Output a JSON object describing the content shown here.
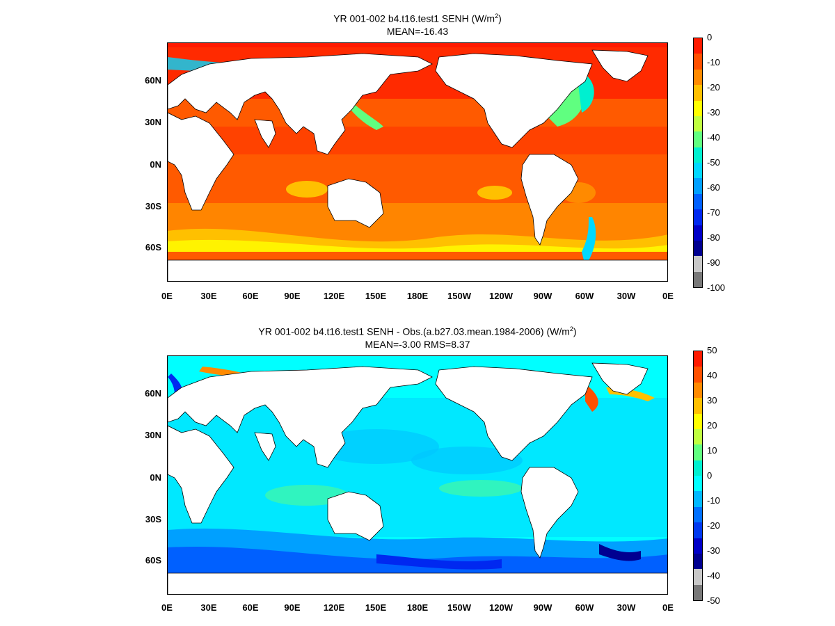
{
  "panels": [
    {
      "title_line1": "YR 001-002 b4.t16.test1  SENH (W/m",
      "title_sup": "2",
      "title_close": ")",
      "title_line2": "MEAN=-16.43",
      "colorbar": {
        "labels": [
          "0",
          "-10",
          "-20",
          "-30",
          "-40",
          "-50",
          "-60",
          "-70",
          "-80",
          "-90",
          "-100"
        ],
        "colors": [
          "#ff1a00",
          "#ff5000",
          "#ff8a00",
          "#ffc000",
          "#ffff00",
          "#c0ff40",
          "#60ff80",
          "#00f0d0",
          "#00d8ff",
          "#00a0ff",
          "#0060ff",
          "#0028f0",
          "#0000c8",
          "#000090",
          "#c8c8c8",
          "#787878"
        ]
      }
    },
    {
      "title_line1": "YR 001-002 b4.t16.test1 SENH - Obs.(a.b27.03.mean.1984-2006) (W/m",
      "title_sup": "2",
      "title_close": ")",
      "title_line2": "MEAN=-3.00 RMS=8.37",
      "colorbar": {
        "labels": [
          "50",
          "40",
          "30",
          "20",
          "10",
          "0",
          "-10",
          "-20",
          "-30",
          "-40",
          "-50"
        ],
        "colors": [
          "#ff1a00",
          "#ff5000",
          "#ff8a00",
          "#ffc000",
          "#ffff00",
          "#c0ff40",
          "#60ff80",
          "#00f0d0",
          "#00ffff",
          "#00b8ff",
          "#0070ff",
          "#0038f0",
          "#0000c8",
          "#000090",
          "#c8c8c8",
          "#787878"
        ]
      }
    }
  ],
  "lat_labels": [
    "60N",
    "30N",
    "0N",
    "30S",
    "60S"
  ],
  "lon_labels": [
    "0E",
    "30E",
    "60E",
    "90E",
    "120E",
    "150E",
    "180E",
    "150W",
    "120W",
    "90W",
    "60W",
    "30W",
    "0E"
  ]
}
